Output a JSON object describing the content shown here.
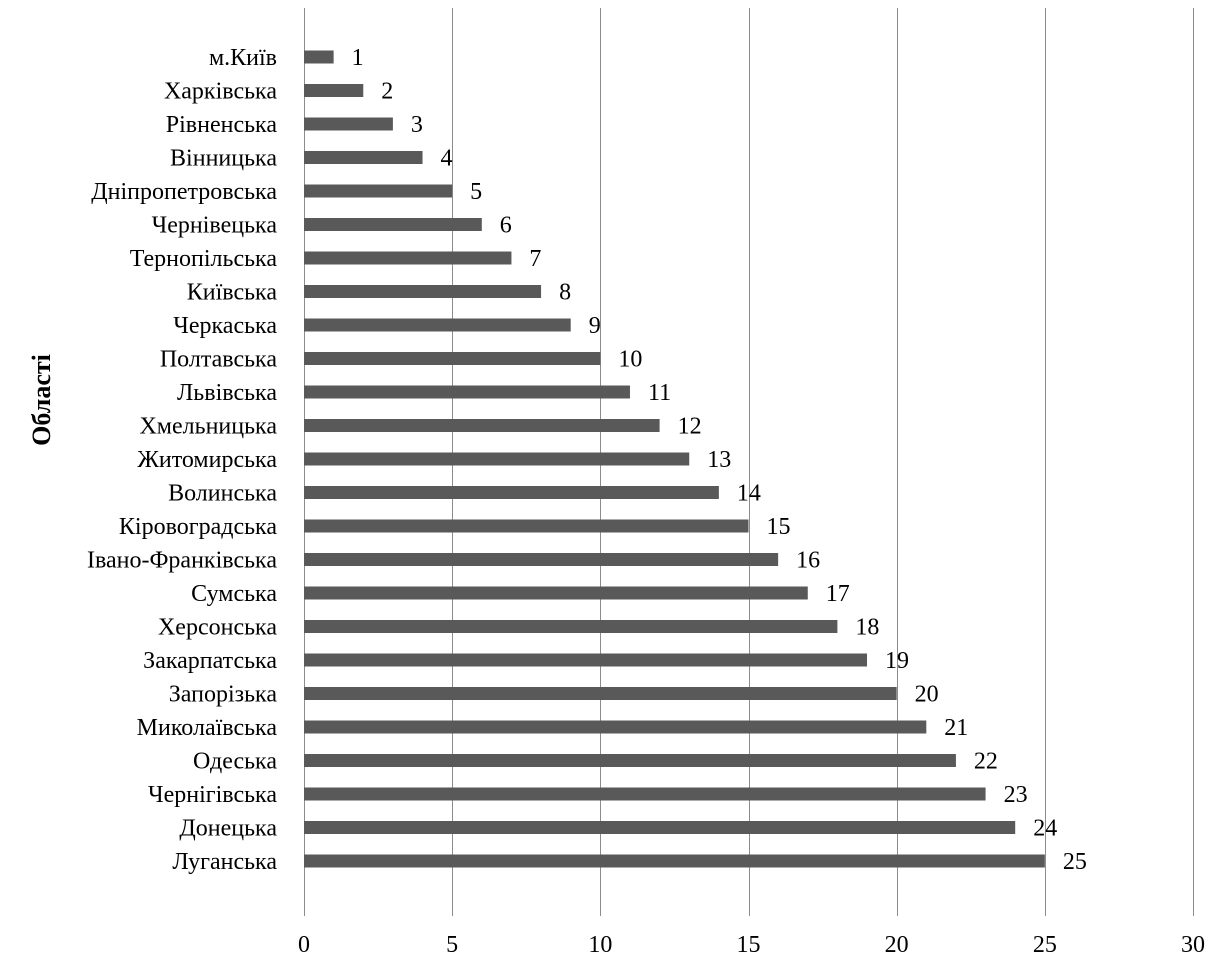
{
  "chart_data": {
    "type": "bar",
    "orientation": "horizontal",
    "categories": [
      "м.Київ",
      "Харківська",
      "Рівненська",
      "Вінницька",
      "Дніпропетровська",
      "Чернівецька",
      "Тернопільська",
      "Київська",
      "Черкаська",
      "Полтавська",
      "Львівська",
      "Хмельницька",
      "Житомирська",
      "Волинська",
      "Кіровоградська",
      "Івано-Франківська",
      "Сумська",
      "Херсонська",
      "Закарпатська",
      "Запорізька",
      "Миколаївська",
      "Одеська",
      "Чернігівська",
      "Донецька",
      "Луганська"
    ],
    "values": [
      1,
      2,
      3,
      4,
      5,
      6,
      7,
      8,
      9,
      10,
      11,
      12,
      13,
      14,
      15,
      16,
      17,
      18,
      19,
      20,
      21,
      22,
      23,
      24,
      25
    ],
    "xlim": [
      0,
      30
    ],
    "xticks": [
      0,
      5,
      10,
      15,
      20,
      25,
      30
    ],
    "ylabel": "Області",
    "xlabel": "",
    "title": "",
    "data_labels": true,
    "grid": "vertical",
    "legend": "none",
    "bar_color": "#595959"
  }
}
